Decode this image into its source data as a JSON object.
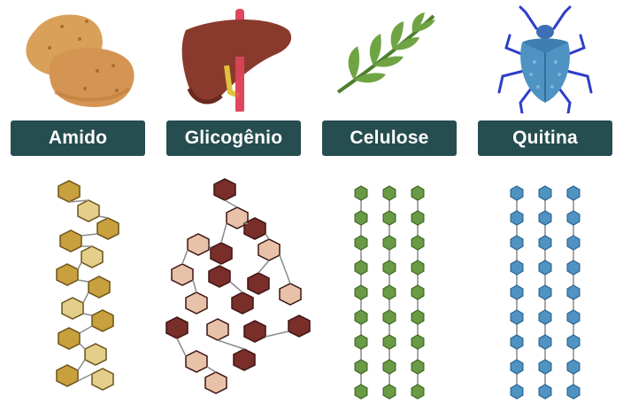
{
  "panels": [
    {
      "label": "Amido",
      "icon": "potato-icon"
    },
    {
      "label": "Glicogênio",
      "icon": "liver-icon"
    },
    {
      "label": "Celulose",
      "icon": "leaf-icon"
    },
    {
      "label": "Quitina",
      "icon": "beetle-icon"
    }
  ],
  "colors": {
    "label_bg": "#264d4f",
    "amido": "#c7a23c",
    "glicogenio": "#7a2e2a",
    "celulose": "#6a9a45",
    "quitina": "#4f93c2"
  }
}
